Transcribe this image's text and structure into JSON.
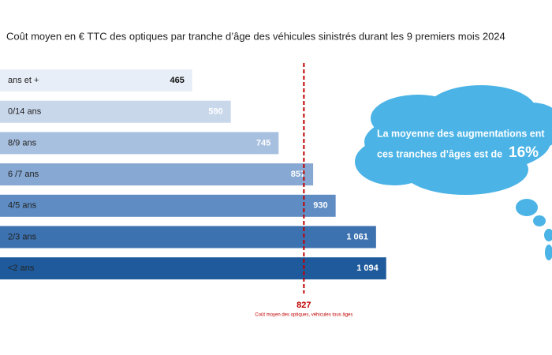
{
  "chart_data": {
    "type": "bar",
    "orientation": "horizontal",
    "title": "Coût moyen en € TTC des optiques par tranche d’âge des véhicules sinistrés durant les 9 premiers mois 2024",
    "categories": [
      "ans et +",
      "0/14 ans",
      "8/9 ans",
      "6 /7 ans",
      "4/5 ans",
      "2/3 ans",
      "<2 ans"
    ],
    "values": [
      465,
      590,
      745,
      857,
      930,
      1061,
      1094
    ],
    "value_labels": [
      "465",
      "590",
      "745",
      "857",
      "930",
      "1 061",
      "1 094"
    ],
    "colors": [
      "#e8eef7",
      "#c9d7eb",
      "#a8c0e0",
      "#86a8d2",
      "#5f8cc3",
      "#3d72b1",
      "#1f5b9c"
    ],
    "reference": {
      "value": 827,
      "label": "827",
      "caption": "Coût moyen des optiques, véhicules tous âges",
      "color": "#c00000"
    }
  },
  "cloud": {
    "line1": "La moyenne des augmentations ent",
    "line2": "ces tranches d’âges est de",
    "highlight": "16%"
  }
}
